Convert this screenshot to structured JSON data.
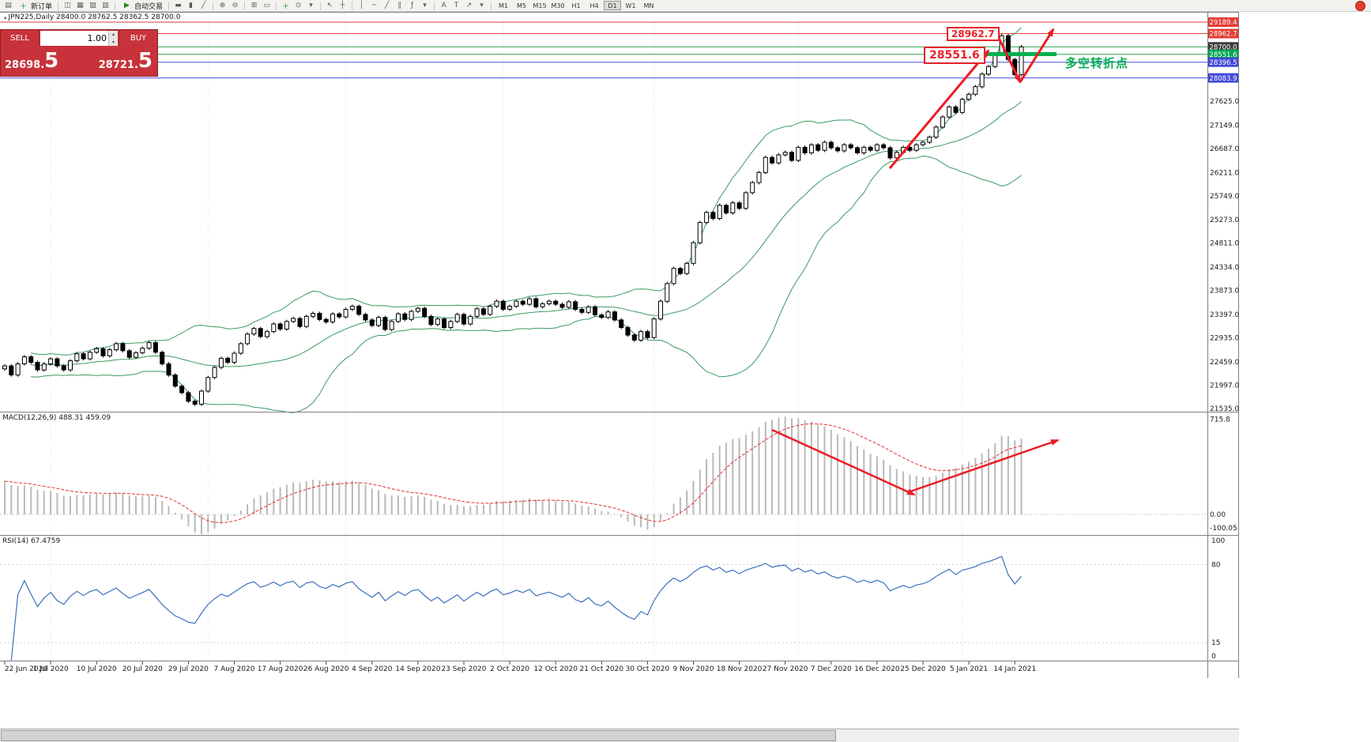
{
  "toolbar": {
    "new_order_label": "新订单",
    "autotrade_label": "自动交易",
    "timeframes": [
      "M1",
      "M5",
      "M15",
      "M30",
      "H1",
      "H4",
      "D1",
      "W1",
      "MN"
    ],
    "active_timeframe": "D1",
    "icons": {
      "chart": "▤",
      "new_order_icon": "＋",
      "open_chart": "◫",
      "profiles": "▦",
      "cascade": "▧",
      "market": "▥",
      "autoplay": "▶",
      "bar_type": "▬",
      "candle_type": "▮",
      "line_type": "╱",
      "zoom_in": "⊕",
      "zoom_out": "⊖",
      "grid": "⊞",
      "doc": "▭",
      "indicators": "＋",
      "clock": "⊙",
      "dropdown": "▾",
      "cursor": "↖",
      "crosshair": "┼",
      "vline": "│",
      "hline": "─",
      "trendline": "╱",
      "channel": "∥",
      "fibo": "ƒ",
      "text": "A",
      "textbox": "T",
      "arrows": "↗"
    }
  },
  "chart": {
    "title_icon": "▴",
    "title": "JPN225,Daily  28400.0 28762.5 28362.5 28700.0",
    "trade_panel": {
      "sell_label": "SELL",
      "buy_label": "BUY",
      "volume": "1.00",
      "sell_price": "28698.",
      "sell_price_big": "5",
      "buy_price": "28721.",
      "buy_price_big": "5",
      "spin_up": "▴",
      "spin_down": "▾"
    },
    "annotations": {
      "high_label": "28962.7",
      "pivot_label": "28551.6",
      "pivot_text": "多空转折点"
    }
  },
  "chart_data": {
    "type": "candlestick",
    "symbol": "JPN225",
    "timeframe": "Daily",
    "title": "JPN225,Daily",
    "ohlc_header": {
      "open": 28400.0,
      "high": 28762.5,
      "low": 28362.5,
      "close": 28700.0
    },
    "x_labels": [
      "22 Jun 2020",
      "1 Jul 2020",
      "10 Jul 2020",
      "20 Jul 2020",
      "29 Jul 2020",
      "7 Aug 2020",
      "17 Aug 2020",
      "26 Aug 2020",
      "4 Sep 2020",
      "14 Sep 2020",
      "23 Sep 2020",
      "2 Oct 2020",
      "12 Oct 2020",
      "21 Oct 2020",
      "30 Oct 2020",
      "9 Nov 2020",
      "18 Nov 2020",
      "27 Nov 2020",
      "7 Dec 2020",
      "16 Dec 2020",
      "25 Dec 2020",
      "5 Jan 2021",
      "14 Jan 2021"
    ],
    "closes": [
      22380,
      22200,
      22420,
      22560,
      22450,
      22300,
      22420,
      22520,
      22380,
      22300,
      22480,
      22620,
      22520,
      22650,
      22720,
      22580,
      22700,
      22820,
      22680,
      22550,
      22640,
      22730,
      22840,
      22650,
      22420,
      22200,
      21980,
      21850,
      21680,
      21620,
      21880,
      22150,
      22350,
      22530,
      22450,
      22630,
      22820,
      23010,
      23120,
      22960,
      23060,
      23210,
      23110,
      23260,
      23320,
      23160,
      23360,
      23420,
      23300,
      23250,
      23410,
      23350,
      23500,
      23560,
      23400,
      23290,
      23180,
      23340,
      23100,
      23260,
      23410,
      23300,
      23460,
      23520,
      23360,
      23200,
      23310,
      23140,
      23260,
      23400,
      23210,
      23360,
      23510,
      23400,
      23560,
      23660,
      23500,
      23560,
      23660,
      23600,
      23710,
      23550,
      23610,
      23660,
      23600,
      23540,
      23650,
      23500,
      23440,
      23550,
      23390,
      23340,
      23450,
      23290,
      23140,
      22990,
      22890,
      23060,
      22940,
      23310,
      23660,
      24010,
      24310,
      24210,
      24410,
      24820,
      25220,
      25420,
      25300,
      25560,
      25410,
      25610,
      25500,
      25810,
      26010,
      26210,
      26510,
      26400,
      26560,
      26610,
      26450,
      26710,
      26600,
      26760,
      26650,
      26810,
      26700,
      26640,
      26760,
      26700,
      26600,
      26710,
      26650,
      26760,
      26700,
      26500,
      26610,
      26710,
      26650,
      26760,
      26810,
      26910,
      27110,
      27310,
      27510,
      27400,
      27660,
      27760,
      27910,
      28160,
      28310,
      28560,
      28920,
      28450,
      28150,
      28700
    ],
    "hlines": [
      {
        "price": 29189.4,
        "color": "#e23d35"
      },
      {
        "price": 28962.7,
        "color": "#e23d35"
      },
      {
        "price": 28700.0,
        "color": "#2aa34f"
      },
      {
        "price": 28551.6,
        "color": "#2aa34f"
      },
      {
        "price": 28396.5,
        "color": "#4a50e0"
      },
      {
        "price": 28083.9,
        "color": "#4a50e0"
      }
    ],
    "price_scale": {
      "marked": [
        {
          "label": "29189.4",
          "price": 29189.4,
          "style": "red"
        },
        {
          "label": "28962.7",
          "price": 28962.7,
          "style": "red"
        },
        {
          "label": "28700.0",
          "price": 28700.0,
          "style": "dark"
        },
        {
          "label": "28551.6",
          "price": 28551.6,
          "style": "green"
        },
        {
          "label": "28396.5",
          "price": 28396.5,
          "style": "blue"
        },
        {
          "label": "28083.9",
          "price": 28083.9,
          "style": "blue"
        }
      ],
      "plain": [
        "27625.0",
        "27149.0",
        "26687.0",
        "26211.0",
        "25749.0",
        "25273.0",
        "24811.0",
        "24334.0",
        "23873.0",
        "23397.0",
        "22935.0",
        "22459.0",
        "21997.0",
        "21535.0"
      ]
    },
    "indicators": {
      "bollinger": {
        "period": 20,
        "deviation": 2,
        "color": "#3a9a60"
      },
      "macd": {
        "label": "MACD(12,26,9) 488.31 459.09",
        "fast": 12,
        "slow": 26,
        "signal": 9,
        "scale_labels": [
          "715.8",
          "0.00",
          "-100.05"
        ]
      },
      "rsi": {
        "label": "RSI(14) 67.4759",
        "period": 14,
        "scale_labels": [
          "100",
          "80",
          "15",
          "0"
        ]
      }
    },
    "accent_colors": {
      "arrow_red": "#ed1c24",
      "pivot_green": "#00b050"
    }
  }
}
